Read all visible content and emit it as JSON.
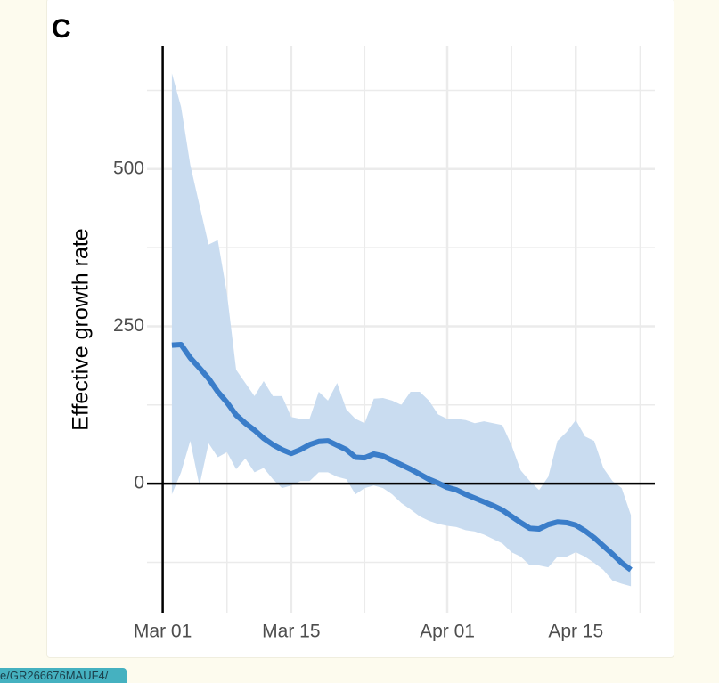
{
  "chart_data": {
    "type": "line",
    "title": "C",
    "ylabel": "Effective growth rate",
    "x": [
      "03-02",
      "03-03",
      "03-04",
      "03-05",
      "03-06",
      "03-07",
      "03-08",
      "03-09",
      "03-10",
      "03-11",
      "03-12",
      "03-13",
      "03-14",
      "03-15",
      "03-16",
      "03-17",
      "03-18",
      "03-19",
      "03-20",
      "03-21",
      "03-22",
      "03-23",
      "03-24",
      "03-25",
      "03-26",
      "03-27",
      "03-28",
      "03-29",
      "03-30",
      "03-31",
      "04-01",
      "04-02",
      "04-03",
      "04-04",
      "04-05",
      "04-06",
      "04-07",
      "04-08",
      "04-09",
      "04-10",
      "04-11",
      "04-12",
      "04-13",
      "04-14",
      "04-15",
      "04-16",
      "04-17",
      "04-18",
      "04-19",
      "04-20",
      "04-21"
    ],
    "series": [
      {
        "color": "#3a7dc9",
        "values": [
          220,
          221,
          200,
          184,
          167,
          146,
          129,
          109,
          96,
          85,
          72,
          62,
          54,
          48,
          54,
          62,
          67,
          68,
          61,
          54,
          42,
          41,
          47,
          44,
          37,
          30,
          23,
          15,
          7,
          1,
          -6,
          -10,
          -17,
          -23,
          -29,
          -35,
          -42,
          -52,
          -62,
          -71,
          -72,
          -65,
          -61,
          -62,
          -66,
          -75,
          -86,
          -99,
          -112,
          -126,
          -137
        ]
      }
    ],
    "band": {
      "color": "#c9dcf0",
      "upper": [
        652,
        599,
        507,
        443,
        380,
        387,
        302,
        181,
        160,
        139,
        163,
        139,
        139,
        106,
        103,
        103,
        146,
        132,
        160,
        118,
        103,
        96,
        135,
        136,
        132,
        125,
        146,
        146,
        132,
        110,
        103,
        103,
        101,
        96,
        99,
        96,
        93,
        61,
        21,
        4,
        -10,
        11,
        68,
        82,
        101,
        75,
        68,
        25,
        4,
        -7,
        -50
      ],
      "lower": [
        -17,
        18,
        68,
        -3,
        64,
        42,
        50,
        23,
        40,
        18,
        25,
        7,
        -7,
        -3,
        4,
        4,
        18,
        18,
        11,
        7,
        -17,
        -7,
        -3,
        -7,
        -17,
        -31,
        -41,
        -52,
        -59,
        -64,
        -67,
        -69,
        -74,
        -76,
        -81,
        -88,
        -95,
        -109,
        -116,
        -130,
        -130,
        -133,
        -116,
        -116,
        -109,
        -116,
        -126,
        -137,
        -154,
        -159,
        -163
      ]
    },
    "xlim": [
      "02-28",
      "04-24"
    ],
    "xticks": [
      {
        "value": "03-01",
        "label": "Mar 01"
      },
      {
        "value": "03-15",
        "label": "Mar 15"
      },
      {
        "value": "04-01",
        "label": "Apr 01"
      },
      {
        "value": "04-15",
        "label": "Apr 15"
      }
    ],
    "x_minor_ticks": [
      "03-08",
      "03-23",
      "04-08",
      "04-22"
    ],
    "ylim": [
      -205,
      695
    ],
    "yticks": [
      0,
      250,
      500
    ],
    "y_minor_ticks": [
      -125,
      125,
      375,
      625
    ],
    "grid": true
  },
  "status_url": "e/GR266676MAUF4/"
}
